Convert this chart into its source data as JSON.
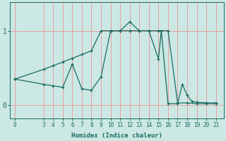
{
  "xlabel": "Humidex (Indice chaleur)",
  "bg_color": "#cce8e4",
  "line_color": "#1a6b61",
  "grid_color": "#e8a0a0",
  "xticks": [
    0,
    3,
    4,
    5,
    6,
    7,
    8,
    9,
    10,
    11,
    12,
    13,
    14,
    15,
    16,
    17,
    18,
    19,
    20,
    21
  ],
  "yticks": [
    0,
    1
  ],
  "ylim": [
    -0.18,
    1.38
  ],
  "xlim": [
    -0.5,
    21.8
  ],
  "line1_x": [
    0,
    3,
    4,
    5,
    6,
    7,
    8,
    9,
    10,
    11,
    12,
    13,
    14,
    15,
    16,
    17,
    18,
    19,
    20,
    21
  ],
  "line1_y": [
    0.35,
    0.48,
    0.53,
    0.58,
    0.63,
    0.68,
    0.73,
    1.0,
    1.0,
    1.0,
    1.0,
    1.0,
    1.0,
    1.0,
    1.0,
    0.03,
    0.03,
    0.02,
    0.02,
    0.02
  ],
  "line2_x": [
    0,
    3,
    4,
    5,
    6,
    7,
    8,
    9,
    10,
    11,
    12,
    13,
    14,
    15,
    15.3,
    16,
    17,
    17.5,
    18,
    18.5,
    19,
    20,
    21
  ],
  "line2_y": [
    0.35,
    0.28,
    0.26,
    0.24,
    0.55,
    0.22,
    0.2,
    0.38,
    1.0,
    1.0,
    1.12,
    1.0,
    1.0,
    0.62,
    1.0,
    0.02,
    0.02,
    0.28,
    0.13,
    0.05,
    0.04,
    0.03,
    0.03
  ]
}
